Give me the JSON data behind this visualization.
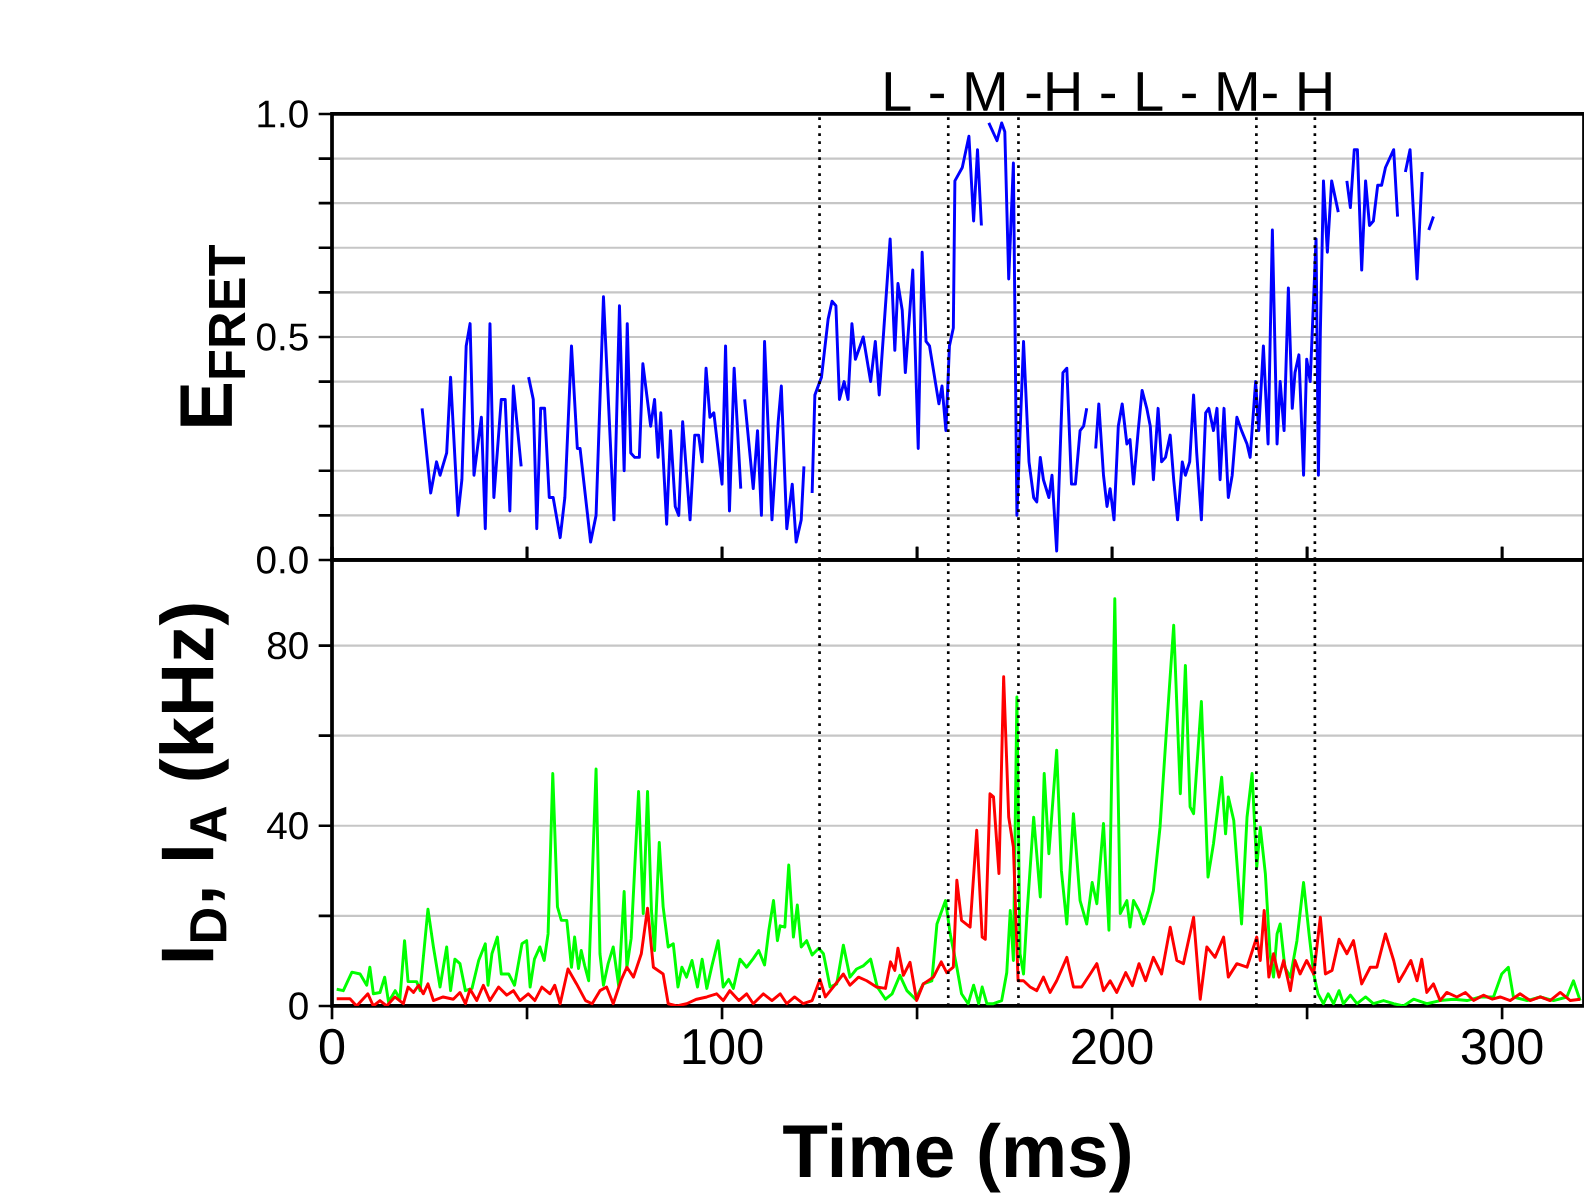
{
  "chart_data": [
    {
      "type": "line",
      "ylabel": "E$_{FRET}$",
      "annotations": [
        "L - M -H - L    -  M- H"
      ],
      "tick_labels": "y",
      "grid": "y",
      "xlim": [
        0,
        321
      ],
      "ylim": [
        0,
        1
      ],
      "xticks": [
        {
          "value": 0,
          "label": null
        },
        {
          "value": 50,
          "label": null
        },
        {
          "value": 100,
          "label": null
        },
        {
          "value": 150,
          "label": null
        },
        {
          "value": 200,
          "label": null
        },
        {
          "value": 250,
          "label": null
        },
        {
          "value": 300,
          "label": null
        }
      ],
      "yticks": [
        {
          "value": 0,
          "label": "0.0"
        },
        {
          "value": 0.1,
          "label": null
        },
        {
          "value": 0.2,
          "label": null
        },
        {
          "value": 0.3,
          "label": null
        },
        {
          "value": 0.4,
          "label": null
        },
        {
          "value": 0.5,
          "label": "0.5"
        },
        {
          "value": 0.6,
          "label": null
        },
        {
          "value": 0.7,
          "label": null
        },
        {
          "value": 0.8,
          "label": null
        },
        {
          "value": 0.9,
          "label": null
        },
        {
          "value": 1,
          "label": "1.0"
        }
      ],
      "ref_lines": [
        {
          "axis": "x",
          "value": 125,
          "color": "#000000",
          "line_style": "dotted"
        },
        {
          "axis": "x",
          "value": 158,
          "color": "#000000",
          "line_style": "dotted"
        },
        {
          "axis": "x",
          "value": 176,
          "color": "#000000",
          "line_style": "dotted"
        },
        {
          "axis": "x",
          "value": 237,
          "color": "#000000",
          "line_style": "dotted"
        },
        {
          "axis": "x",
          "value": 252,
          "color": "#000000",
          "line_style": "dotted"
        }
      ],
      "series": [
        {
          "color": "#0000ff",
          "line_style": "solid",
          "x": [
            23.1,
            25.3,
            26.8,
            27.7,
            29.4,
            30.4,
            32.3,
            33.3,
            34.4,
            35.4,
            36.4,
            38.3,
            39.3,
            40.5,
            41.5,
            43.4,
            44.4,
            45.6,
            46.5,
            48.5,
            49.5,
            50.4,
            51.6,
            52.5,
            53.5,
            54.5,
            55.7,
            56.7,
            58.5,
            59.7,
            61.4,
            62.9,
            63.6,
            66.3,
            67.7,
            69.6,
            72.3,
            73.7,
            74.9,
            75.7,
            76.6,
            77.6,
            78.8,
            79.7,
            81.7,
            82.7,
            83.6,
            84.3,
            85.8,
            86.8,
            88.0,
            88.9,
            89.9,
            91.8,
            93.0,
            94.0,
            94.9,
            95.9,
            96.9,
            97.9,
            100.0,
            100.9,
            101.9,
            103.1,
            104.8,
            105.3,
            105.8,
            108.0,
            109.1,
            110.1,
            110.9,
            112.8,
            114.4,
            115.2,
            116.6,
            118.0,
            119.0,
            120.3,
            121.0,
            122.0,
            123.1,
            123.8,
            125.5,
            127.2,
            128.2,
            129.2,
            130.1,
            131.3,
            132.3,
            133.3,
            134.2,
            135.4,
            136.2,
            138.1,
            139.3,
            140.3,
            141.5,
            143.1,
            144.3,
            145.1,
            146.2,
            147.0,
            148.9,
            150.3,
            151.3,
            152.3,
            153.2,
            155.6,
            156.4,
            157.4,
            158.3,
            159.3,
            159.7,
            161.6,
            163.3,
            164.5,
            165.5,
            166.5,
            167.5,
            168.4,
            170.5,
            171.7,
            172.5,
            173.5,
            174.7,
            175.6,
            177.3,
            178.7,
            179.9,
            180.7,
            181.6,
            182.4,
            183.8,
            184.6,
            185.8,
            187.4,
            188.4,
            189.6,
            190.6,
            191.8,
            192.7,
            193.5,
            194.6,
            195.8,
            196.6,
            197.8,
            198.7,
            199.5,
            200.5,
            201.6,
            202.6,
            203.8,
            204.6,
            205.5,
            206.7,
            207.7,
            208.9,
            209.8,
            210.6,
            211.8,
            212.7,
            213.7,
            214.9,
            215.8,
            216.8,
            218.0,
            218.8,
            219.9,
            220.9,
            221.7,
            222.9,
            224.0,
            224.8,
            226.0,
            226.9,
            227.7,
            228.7,
            229.8,
            230.8,
            232.0,
            233.2,
            234.6,
            235.4,
            236.8,
            237.6,
            238.8,
            240.0,
            241.1,
            242.3,
            243.1,
            244.1,
            245.2,
            246.2,
            246.9,
            247.9,
            249.1,
            249.9,
            250.8,
            252.3,
            252.9,
            253.4,
            254.2,
            255.2,
            256.3,
            258.0,
            259.1,
            260.2,
            261.1,
            262.1,
            262.9,
            264.0,
            265.0,
            266.0,
            267.0,
            268.1,
            269.1,
            270.1,
            272.2,
            273.2,
            274.2,
            275.2,
            276.4,
            278.2,
            279.5,
            280.3,
            281.2,
            282.4
          ],
          "values": [
            0.34,
            0.15,
            0.22,
            0.19,
            0.24,
            0.41,
            0.1,
            0.18,
            0.48,
            0.53,
            0.19,
            0.32,
            0.07,
            0.53,
            0.14,
            0.36,
            0.36,
            0.11,
            0.39,
            0.21,
            null,
            0.41,
            0.36,
            0.07,
            0.34,
            0.34,
            0.14,
            0.14,
            0.05,
            0.14,
            0.48,
            0.25,
            0.25,
            0.04,
            0.1,
            0.59,
            0.09,
            0.57,
            0.2,
            0.53,
            0.24,
            0.23,
            0.23,
            0.44,
            0.3,
            0.36,
            0.23,
            0.33,
            0.08,
            0.29,
            0.12,
            0.1,
            0.31,
            0.09,
            0.28,
            0.28,
            0.22,
            0.43,
            0.32,
            0.33,
            0.17,
            0.48,
            0.11,
            0.43,
            0.16,
            null,
            0.36,
            0.16,
            0.29,
            0.1,
            0.49,
            0.09,
            0.31,
            0.39,
            0.07,
            0.17,
            0.04,
            0.09,
            0.21,
            null,
            0.15,
            0.37,
            0.41,
            0.54,
            0.58,
            0.57,
            0.36,
            0.4,
            0.36,
            0.53,
            0.45,
            0.48,
            0.5,
            0.4,
            0.49,
            0.37,
            0.52,
            0.72,
            0.47,
            0.62,
            0.56,
            0.42,
            0.65,
            0.25,
            0.69,
            0.49,
            0.48,
            0.35,
            0.39,
            0.29,
            0.48,
            0.52,
            0.85,
            0.88,
            0.95,
            0.76,
            0.92,
            0.75,
            null,
            0.98,
            0.94,
            0.98,
            0.96,
            0.63,
            0.89,
            0.1,
            0.49,
            0.22,
            0.14,
            0.13,
            0.23,
            0.18,
            0.14,
            0.19,
            0.02,
            0.42,
            0.43,
            0.17,
            0.17,
            0.29,
            0.3,
            0.34,
            null,
            0.25,
            0.35,
            0.19,
            0.12,
            0.16,
            0.09,
            0.3,
            0.35,
            0.26,
            0.27,
            0.17,
            0.29,
            0.38,
            0.34,
            0.3,
            0.18,
            0.34,
            0.22,
            0.23,
            0.28,
            0.18,
            0.09,
            0.22,
            0.19,
            0.22,
            0.37,
            0.24,
            0.09,
            0.33,
            0.34,
            0.29,
            0.34,
            0.18,
            0.34,
            0.14,
            0.19,
            0.32,
            0.29,
            0.26,
            0.23,
            0.4,
            0.29,
            0.48,
            0.26,
            0.74,
            0.26,
            0.4,
            0.29,
            0.61,
            0.34,
            0.42,
            0.46,
            0.19,
            0.45,
            0.4,
            0.72,
            0.19,
            0.51,
            0.85,
            0.69,
            0.85,
            0.78,
            null,
            0.85,
            0.79,
            0.92,
            0.92,
            0.65,
            0.85,
            0.75,
            0.76,
            0.84,
            0.84,
            0.88,
            0.92,
            0.77,
            null,
            0.87,
            0.92,
            0.63,
            0.87,
            null,
            0.74,
            0.77
          ]
        }
      ]
    },
    {
      "type": "line",
      "xlabel": "Time (ms)",
      "ylabel": "I$_{D}$, I$_{A}$ (kHz)",
      "grid": "y",
      "xlim": [
        0,
        321
      ],
      "ylim": [
        0,
        99
      ],
      "xticks": [
        0,
        {
          "value": 50,
          "label": null
        },
        100,
        {
          "value": 150,
          "label": null
        },
        200,
        {
          "value": 250,
          "label": null
        },
        300
      ],
      "yticks": [
        0,
        {
          "value": 20,
          "label": null
        },
        40,
        {
          "value": 60,
          "label": null
        },
        80
      ],
      "ref_lines": [
        {
          "axis": "x",
          "value": 125,
          "color": "#000000",
          "line_style": "dotted"
        },
        {
          "axis": "x",
          "value": 158,
          "color": "#000000",
          "line_style": "dotted"
        },
        {
          "axis": "x",
          "value": 176,
          "color": "#000000",
          "line_style": "dotted"
        },
        {
          "axis": "x",
          "value": 237,
          "color": "#000000",
          "line_style": "dotted"
        },
        {
          "axis": "x",
          "value": 252,
          "color": "#000000",
          "line_style": "dotted"
        }
      ],
      "series": [
        {
          "color": "#00ff00",
          "line_style": "solid",
          "x": [
            1.2,
            2.9,
            5.1,
            7.2,
            8.9,
            9.7,
            10.6,
            12.3,
            13.5,
            14.5,
            16.2,
            17.4,
            18.6,
            19.5,
            21.7,
            22.6,
            24.6,
            26.0,
            27.7,
            29.4,
            30.4,
            31.5,
            32.8,
            34.2,
            35.9,
            37.6,
            39.3,
            40.0,
            41.0,
            42.4,
            43.4,
            45.3,
            46.8,
            48.7,
            49.9,
            50.8,
            51.9,
            53.3,
            54.4,
            55.4,
            56.6,
            57.8,
            58.8,
            60.2,
            61.4,
            62.2,
            63.2,
            63.9,
            64.8,
            65.8,
            67.7,
            68.7,
            69.6,
            70.8,
            72.1,
            73.5,
            74.9,
            75.6,
            76.7,
            78.6,
            79.8,
            80.9,
            81.9,
            82.7,
            83.9,
            84.9,
            86.2,
            87.5,
            88.7,
            89.7,
            90.9,
            92.3,
            93.7,
            94.9,
            96.1,
            97.4,
            99.0,
            100.3,
            101.7,
            102.9,
            104.6,
            106.3,
            108.0,
            109.4,
            110.9,
            112.0,
            113.2,
            114.2,
            114.9,
            116.1,
            117.1,
            118.3,
            119.3,
            120.3,
            121.7,
            123.1,
            124.8,
            126.0,
            127.7,
            129.4,
            131.1,
            132.8,
            134.5,
            136.2,
            138.1,
            139.8,
            141.9,
            143.6,
            145.6,
            147.4,
            149.6,
            151.6,
            153.8,
            155.1,
            157.3,
            158.5,
            160.2,
            161.4,
            163.1,
            164.5,
            165.8,
            166.7,
            167.9,
            169.6,
            171.7,
            173.0,
            173.9,
            174.7,
            175.6,
            176.4,
            177.3,
            178.2,
            179.9,
            181.6,
            182.6,
            183.8,
            185.8,
            187.0,
            188.4,
            190.1,
            191.8,
            193.5,
            194.9,
            196.1,
            197.8,
            199.2,
            200.7,
            202.1,
            203.8,
            204.6,
            205.5,
            206.9,
            208.1,
            209.3,
            210.6,
            212.3,
            214.0,
            215.8,
            217.5,
            218.8,
            220.0,
            220.9,
            222.9,
            224.6,
            226.0,
            228.1,
            229.1,
            229.8,
            231.2,
            233.2,
            234.6,
            235.9,
            237.1,
            238.0,
            239.3,
            240.5,
            241.4,
            242.3,
            243.1,
            244.3,
            245.7,
            247.4,
            249.1,
            250.5,
            251.7,
            252.8,
            254.2,
            255.4,
            256.8,
            258.2,
            259.3,
            261.1,
            262.8,
            265.0,
            267.0,
            269.6,
            272.2,
            274.7,
            277.3,
            280.7,
            284.1,
            287.6,
            291.0,
            294.4,
            297.8,
            299.9,
            301.6,
            302.9,
            306.4,
            309.8,
            313.2,
            316.6,
            318.3,
            320.0
          ],
          "values": [
            3.7,
            3.4,
            7.5,
            7.1,
            4.6,
            8.6,
            2.7,
            3.0,
            6.4,
            0.9,
            3.4,
            1.5,
            14.5,
            5.4,
            5.4,
            3.4,
            21.5,
            13.1,
            4.2,
            13.1,
            3.4,
            10.4,
            9.4,
            3.4,
            3.9,
            10.1,
            13.8,
            4.6,
            11.6,
            15.3,
            7.1,
            7.1,
            4.6,
            13.8,
            14.5,
            4.2,
            10.4,
            13.1,
            10.1,
            16.0,
            51.6,
            22.0,
            19.0,
            19.0,
            8.6,
            15.3,
            8.3,
            12.3,
            8.9,
            5.6,
            52.6,
            11.6,
            4.6,
            9.4,
            13.1,
            4.5,
            25.4,
            8.6,
            15.0,
            47.6,
            20.5,
            47.6,
            21.2,
            12.3,
            36.3,
            22.0,
            13.1,
            13.8,
            4.2,
            8.6,
            6.4,
            10.1,
            4.2,
            10.4,
            3.9,
            8.9,
            14.5,
            4.2,
            5.9,
            3.9,
            10.4,
            8.6,
            10.5,
            12.3,
            9.1,
            16.8,
            23.4,
            14.5,
            17.8,
            17.5,
            31.3,
            15.3,
            22.4,
            13.1,
            14.5,
            11.3,
            12.8,
            11.6,
            4.2,
            4.9,
            13.5,
            6.4,
            8.2,
            8.9,
            10.4,
            4.2,
            1.5,
            2.7,
            6.8,
            3.4,
            1.5,
            4.9,
            5.6,
            18.2,
            23.4,
            16.0,
            8.6,
            2.7,
            0.5,
            4.6,
            0.5,
            4.2,
            0.5,
            0.5,
            1.2,
            7.4,
            21.2,
            10.1,
            68.6,
            11.6,
            7.1,
            20.5,
            41.9,
            24.2,
            51.6,
            33.8,
            56.8,
            30.1,
            18.2,
            42.7,
            23.4,
            18.2,
            27.4,
            22.7,
            40.5,
            16.8,
            90.4,
            20.5,
            23.4,
            17.5,
            23.4,
            21.2,
            18.2,
            21.2,
            25.6,
            39.7,
            61.9,
            84.5,
            47.1,
            75.6,
            44.2,
            42.7,
            67.6,
            28.6,
            36.0,
            50.8,
            38.2,
            46.4,
            41.2,
            18.2,
            41.9,
            51.6,
            30.8,
            39.7,
            29.4,
            11.6,
            6.4,
            16.0,
            18.2,
            8.6,
            6.4,
            14.5,
            27.4,
            16.0,
            7.1,
            2.7,
            0.5,
            2.7,
            0.5,
            3.4,
            0.5,
            2.4,
            0.5,
            2.0,
            0.5,
            1.2,
            0.5,
            0,
            1.5,
            0.5,
            1.2,
            1.5,
            1.2,
            2.0,
            2.0,
            7.1,
            8.6,
            2.0,
            1.2,
            2.0,
            1.2,
            2.0,
            5.6,
            1.2
          ]
        },
        {
          "color": "#ff0000",
          "line_style": "solid",
          "x": [
            1.2,
            4.6,
            6.3,
            9.2,
            10.6,
            12.3,
            14.0,
            16.1,
            18.3,
            19.5,
            20.9,
            22.2,
            23.4,
            24.6,
            26.0,
            28.5,
            31.1,
            32.8,
            34.2,
            35.4,
            37.1,
            38.8,
            40.5,
            42.7,
            44.8,
            46.5,
            48.2,
            50.3,
            52.0,
            53.8,
            55.9,
            57.1,
            58.5,
            60.5,
            62.7,
            65.0,
            66.7,
            68.7,
            70.4,
            72.1,
            74.2,
            75.6,
            77.3,
            79.3,
            80.9,
            82.4,
            84.9,
            86.2,
            88.4,
            90.9,
            93.5,
            96.1,
            98.6,
            100.3,
            102.0,
            104.3,
            106.3,
            108.0,
            110.6,
            112.8,
            114.9,
            116.6,
            118.6,
            120.8,
            123.1,
            125.1,
            126.5,
            128.5,
            131.1,
            132.8,
            135.0,
            137.1,
            139.6,
            141.9,
            143.2,
            144.3,
            145.1,
            146.5,
            148.2,
            149.9,
            151.6,
            154.2,
            156.2,
            157.6,
            159.3,
            160.2,
            161.4,
            163.6,
            165.3,
            166.7,
            167.5,
            168.7,
            169.6,
            171.0,
            172.2,
            173.5,
            174.7,
            175.9,
            177.3,
            179.0,
            180.7,
            182.4,
            184.1,
            185.8,
            188.4,
            190.1,
            192.2,
            194.4,
            196.1,
            197.8,
            199.5,
            201.2,
            203.5,
            205.2,
            206.9,
            208.6,
            210.6,
            212.7,
            214.9,
            216.6,
            218.3,
            220.9,
            222.6,
            224.3,
            226.4,
            228.6,
            229.8,
            232.0,
            234.6,
            237.1,
            238.0,
            239.0,
            240.2,
            241.4,
            242.8,
            244.0,
            245.7,
            246.9,
            248.2,
            249.9,
            251.7,
            253.4,
            254.7,
            256.4,
            258.2,
            260.2,
            261.9,
            264.0,
            266.2,
            267.9,
            270.1,
            272.2,
            273.5,
            275.2,
            276.6,
            278.2,
            279.4,
            280.7,
            282.4,
            284.1,
            285.8,
            288.4,
            290.6,
            292.7,
            295.2,
            297.5,
            299.5,
            302.1,
            304.6,
            307.2,
            309.8,
            312.3,
            314.9,
            317.5,
            320.0
          ],
          "values": [
            1.6,
            1.6,
            0,
            2.7,
            0,
            1.2,
            0,
            2.0,
            0.5,
            4.2,
            3.0,
            4.6,
            2.7,
            4.9,
            1.2,
            2.0,
            1.5,
            3.0,
            0.5,
            3.7,
            1.2,
            4.6,
            1.2,
            4.2,
            2.4,
            3.4,
            1.2,
            2.7,
            1.2,
            4.2,
            2.7,
            4.6,
            0.5,
            8.2,
            4.9,
            1.2,
            0.5,
            3.4,
            4.2,
            0.5,
            5.9,
            8.6,
            6.4,
            11.6,
            21.7,
            8.6,
            7.1,
            0.5,
            0,
            0.5,
            1.5,
            2.0,
            2.7,
            1.2,
            3.4,
            1.2,
            2.7,
            0.5,
            2.7,
            1.2,
            2.7,
            0.5,
            2.0,
            0.5,
            1.2,
            5.9,
            2.0,
            4.2,
            7.1,
            4.6,
            6.4,
            5.6,
            4.2,
            3.9,
            9.8,
            7.9,
            12.8,
            6.8,
            9.7,
            1.2,
            4.9,
            6.4,
            9.8,
            7.4,
            8.6,
            27.9,
            19.0,
            17.5,
            39.0,
            15.3,
            14.8,
            47.1,
            46.4,
            29.4,
            73.1,
            41.9,
            35.3,
            5.6,
            5.6,
            4.2,
            3.4,
            6.4,
            3.0,
            5.6,
            10.8,
            4.2,
            4.2,
            7.1,
            9.4,
            3.4,
            5.6,
            3.0,
            7.4,
            4.5,
            9.4,
            5.6,
            10.8,
            7.1,
            17.5,
            10.1,
            9.4,
            19.7,
            1.5,
            13.1,
            10.8,
            15.3,
            6.4,
            9.4,
            8.6,
            15.3,
            10.1,
            21.2,
            6.4,
            11.6,
            6.4,
            10.1,
            3.4,
            10.1,
            7.1,
            10.1,
            7.1,
            19.7,
            7.1,
            7.9,
            14.8,
            11.6,
            14.5,
            4.9,
            8.6,
            8.6,
            16.0,
            10.1,
            5.4,
            7.9,
            10.1,
            5.6,
            10.4,
            3.0,
            4.9,
            1.2,
            3.0,
            2.0,
            3.0,
            1.2,
            2.4,
            1.5,
            2.0,
            1.2,
            2.7,
            1.2,
            2.0,
            1.2,
            3.0,
            1.2,
            1.5
          ]
        }
      ]
    }
  ]
}
